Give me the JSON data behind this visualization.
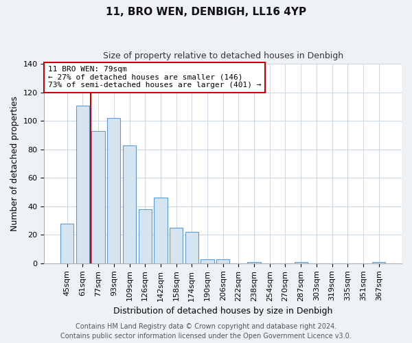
{
  "title": "11, BRO WEN, DENBIGH, LL16 4YP",
  "subtitle": "Size of property relative to detached houses in Denbigh",
  "xlabel": "Distribution of detached houses by size in Denbigh",
  "ylabel": "Number of detached properties",
  "bar_labels": [
    "45sqm",
    "61sqm",
    "77sqm",
    "93sqm",
    "109sqm",
    "126sqm",
    "142sqm",
    "158sqm",
    "174sqm",
    "190sqm",
    "206sqm",
    "222sqm",
    "238sqm",
    "254sqm",
    "270sqm",
    "287sqm",
    "303sqm",
    "319sqm",
    "335sqm",
    "351sqm",
    "367sqm"
  ],
  "bar_values": [
    28,
    111,
    93,
    102,
    83,
    38,
    46,
    25,
    22,
    3,
    3,
    0,
    1,
    0,
    0,
    1,
    0,
    0,
    0,
    0,
    1
  ],
  "bar_facecolor": "#d6e4f0",
  "bar_edgecolor": "#5b9bd5",
  "vline_index": 1.5,
  "vline_color": "#cc0000",
  "ylim": [
    0,
    140
  ],
  "yticks": [
    0,
    20,
    40,
    60,
    80,
    100,
    120,
    140
  ],
  "annotation_title": "11 BRO WEN: 79sqm",
  "annotation_line1": "← 27% of detached houses are smaller (146)",
  "annotation_line2": "73% of semi-detached houses are larger (401) →",
  "footer_line1": "Contains HM Land Registry data © Crown copyright and database right 2024.",
  "footer_line2": "Contains public sector information licensed under the Open Government Licence v3.0.",
  "background_color": "#eef2f7",
  "plot_background": "#ffffff",
  "grid_color": "#c8d8e8",
  "title_fontsize": 11,
  "subtitle_fontsize": 9,
  "ylabel_fontsize": 9,
  "xlabel_fontsize": 9,
  "tick_fontsize": 8,
  "footer_fontsize": 7
}
